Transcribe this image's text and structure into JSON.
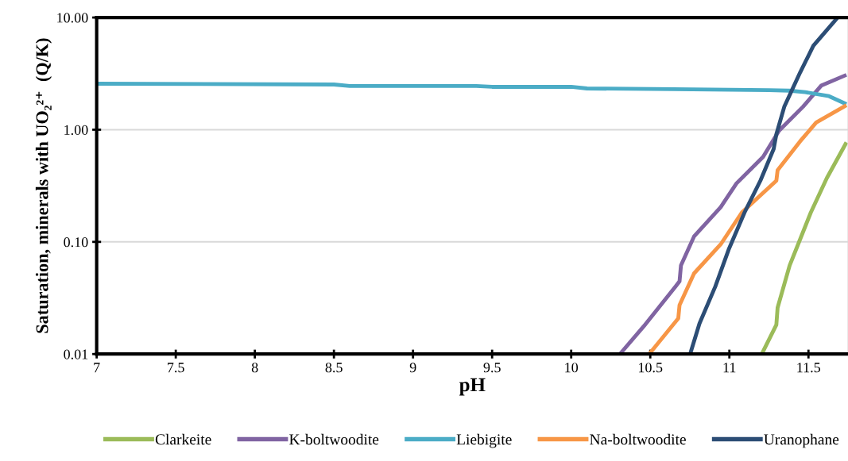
{
  "chart_data": {
    "type": "line",
    "xlabel": "pH",
    "ylabel": "Saturation, minerals with UO₂²⁺  (Q/K)",
    "log": "y",
    "grid": "y",
    "legend": "bottom",
    "marker": "none",
    "line_style": "solid",
    "xlim": [
      7,
      11.75
    ],
    "xticks": [
      7,
      7.5,
      8,
      8.5,
      9,
      9.5,
      10,
      10.5,
      11,
      11.5
    ],
    "ylim": [
      0.01,
      10
    ],
    "yticks": [
      {
        "value": 0.01,
        "label": "0.01"
      },
      {
        "value": 0.1,
        "label": "0.10"
      },
      {
        "value": 1,
        "label": "1.00"
      },
      {
        "value": 10,
        "label": "10.00"
      }
    ],
    "series": [
      {
        "name": "Clarkeite",
        "color": "#9bbb59",
        "x": [
          11.205,
          11.297,
          11.305,
          11.381,
          11.448,
          11.515,
          11.616,
          11.74
        ],
        "values": [
          0.01,
          0.0182,
          0.0259,
          0.0616,
          0.106,
          0.183,
          0.37,
          0.77
        ]
      },
      {
        "name": "K-boltwoodite",
        "color": "#8064a2",
        "x": [
          10.308,
          10.459,
          10.66,
          10.685,
          10.694,
          10.777,
          10.945,
          11.045,
          11.213,
          11.314,
          11.465,
          11.582,
          11.74
        ],
        "values": [
          0.01,
          0.0177,
          0.04,
          0.0445,
          0.0616,
          0.112,
          0.204,
          0.332,
          0.572,
          0.98,
          1.6,
          2.48,
          3.08
        ]
      },
      {
        "name": "Liebigite",
        "color": "#4bacc6",
        "x": [
          7,
          8.5,
          8.6,
          9.4,
          9.5,
          10.0,
          10.1,
          10.645,
          11.25,
          11.38,
          11.48,
          11.63,
          11.74
        ],
        "values": [
          2.57,
          2.53,
          2.45,
          2.45,
          2.41,
          2.41,
          2.33,
          2.3,
          2.25,
          2.23,
          2.16,
          1.99,
          1.69
        ]
      },
      {
        "name": "Na-boltwoodite",
        "color": "#f79646",
        "x": [
          10.493,
          10.677,
          10.685,
          10.777,
          10.945,
          11.079,
          11.297,
          11.305,
          11.448,
          11.549,
          11.74
        ],
        "values": [
          0.01,
          0.0208,
          0.0273,
          0.0524,
          0.095,
          0.183,
          0.351,
          0.436,
          0.79,
          1.16,
          1.65
        ]
      },
      {
        "name": "Uranophane",
        "color": "#2c4d75",
        "x": [
          10.752,
          10.811,
          10.911,
          10.995,
          11.096,
          11.196,
          11.28,
          11.297,
          11.347,
          11.448,
          11.531,
          11.682
        ],
        "values": [
          0.01,
          0.0187,
          0.04,
          0.085,
          0.183,
          0.351,
          0.673,
          0.91,
          1.6,
          3.25,
          5.6,
          9.9
        ]
      }
    ]
  }
}
